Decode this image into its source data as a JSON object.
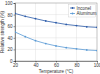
{
  "chart_data": {
    "type": "line",
    "x_label": "Temperature (°C)",
    "y_label": "Relative strength (%)",
    "x": [
      20,
      30,
      40,
      50,
      60,
      70,
      80,
      90,
      100
    ],
    "series": [
      {
        "name": "Inconel",
        "color": "#2b5aa8",
        "marker": "circle",
        "values": [
          82,
          77,
          73,
          69,
          66,
          63,
          61,
          59,
          58
        ]
      },
      {
        "name": "Aluminum",
        "color": "#5b9bd5",
        "marker": "circle",
        "values": [
          50,
          42,
          35,
          30,
          26,
          23,
          21,
          19,
          18
        ]
      }
    ],
    "xlim": [
      20,
      100
    ],
    "xticks": [
      20,
      40,
      60,
      80,
      100
    ],
    "ylim": [
      0,
      100
    ],
    "yticks": [
      0,
      20,
      40,
      60,
      80,
      100
    ],
    "grid": true,
    "legend": "upper right"
  }
}
